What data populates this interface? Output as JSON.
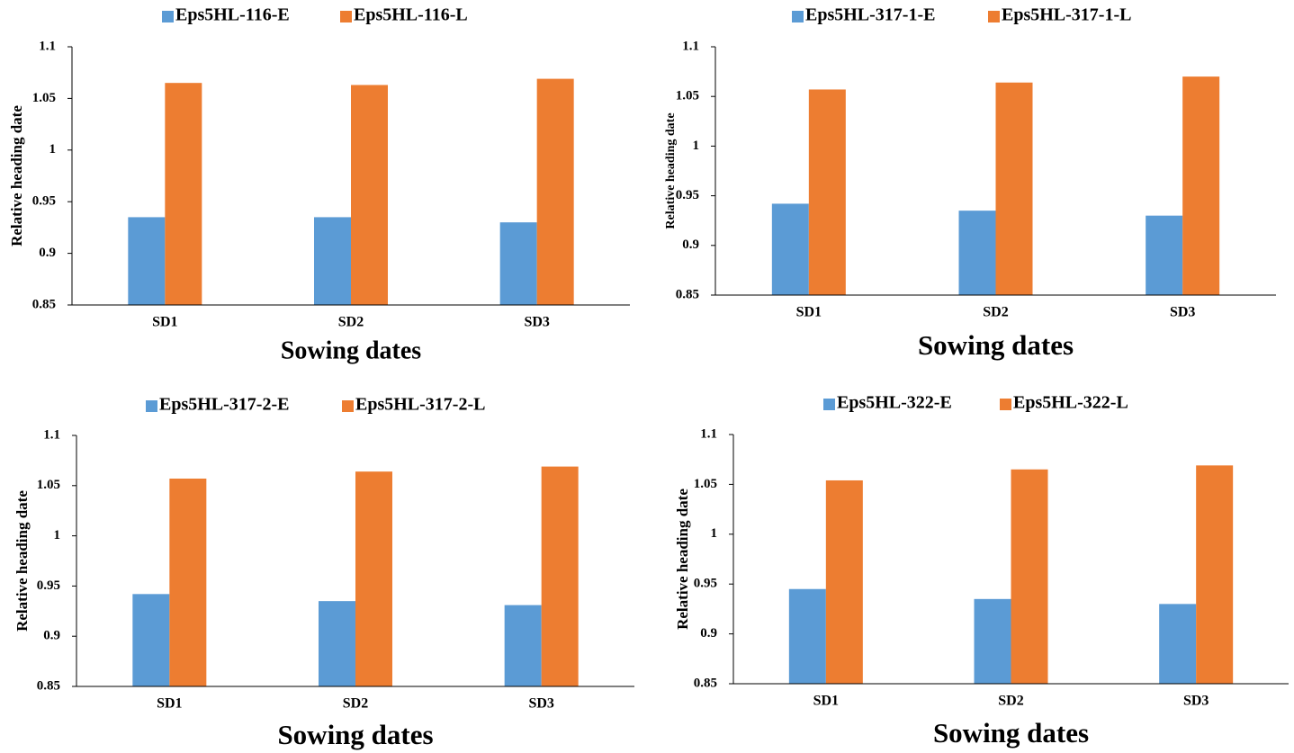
{
  "chart_data": [
    {
      "type": "bar",
      "categories": [
        "SD1",
        "SD2",
        "SD3"
      ],
      "series": [
        {
          "name": "Eps5HL-116-E",
          "color": "#5b9bd5",
          "values": [
            0.935,
            0.935,
            0.93
          ]
        },
        {
          "name": "Eps5HL-116-L",
          "color": "#ed7d31",
          "values": [
            1.065,
            1.063,
            1.069
          ]
        }
      ],
      "x_label": "Sowing dates",
      "y_label": "Relative heading date",
      "ylim": [
        0.85,
        1.1
      ],
      "yticks": [
        0.85,
        0.9,
        0.95,
        1,
        1.05,
        1.1
      ],
      "grid": false,
      "legend": "top"
    },
    {
      "type": "bar",
      "categories": [
        "SD1",
        "SD2",
        "SD3"
      ],
      "series": [
        {
          "name": "Eps5HL-317-1-E",
          "color": "#5b9bd5",
          "values": [
            0.942,
            0.935,
            0.93
          ]
        },
        {
          "name": "Eps5HL-317-1-L",
          "color": "#ed7d31",
          "values": [
            1.057,
            1.064,
            1.07
          ]
        }
      ],
      "x_label": "Sowing dates",
      "y_label": "Relative heading date",
      "ylim": [
        0.85,
        1.1
      ],
      "yticks": [
        0.85,
        0.9,
        0.95,
        1,
        1.05,
        1.1
      ],
      "grid": false,
      "legend": "top"
    },
    {
      "type": "bar",
      "categories": [
        "SD1",
        "SD2",
        "SD3"
      ],
      "series": [
        {
          "name": "Eps5HL-317-2-E",
          "color": "#5b9bd5",
          "values": [
            0.942,
            0.935,
            0.931
          ]
        },
        {
          "name": "Eps5HL-317-2-L",
          "color": "#ed7d31",
          "values": [
            1.057,
            1.064,
            1.069
          ]
        }
      ],
      "x_label": "Sowing dates",
      "y_label": "Relative heading date",
      "ylim": [
        0.85,
        1.1
      ],
      "yticks": [
        0.85,
        0.9,
        0.95,
        1,
        1.05,
        1.1
      ],
      "grid": false,
      "legend": "top"
    },
    {
      "type": "bar",
      "categories": [
        "SD1",
        "SD2",
        "SD3"
      ],
      "series": [
        {
          "name": "Eps5HL-322-E",
          "color": "#5b9bd5",
          "values": [
            0.945,
            0.935,
            0.93
          ]
        },
        {
          "name": "Eps5HL-322-L",
          "color": "#ed7d31",
          "values": [
            1.054,
            1.065,
            1.069
          ]
        }
      ],
      "x_label": "Sowing dates",
      "y_label": "Relative heading date",
      "ylim": [
        0.85,
        1.1
      ],
      "yticks": [
        0.85,
        0.9,
        0.95,
        1,
        1.05,
        1.1
      ],
      "grid": false,
      "legend": "top"
    }
  ]
}
